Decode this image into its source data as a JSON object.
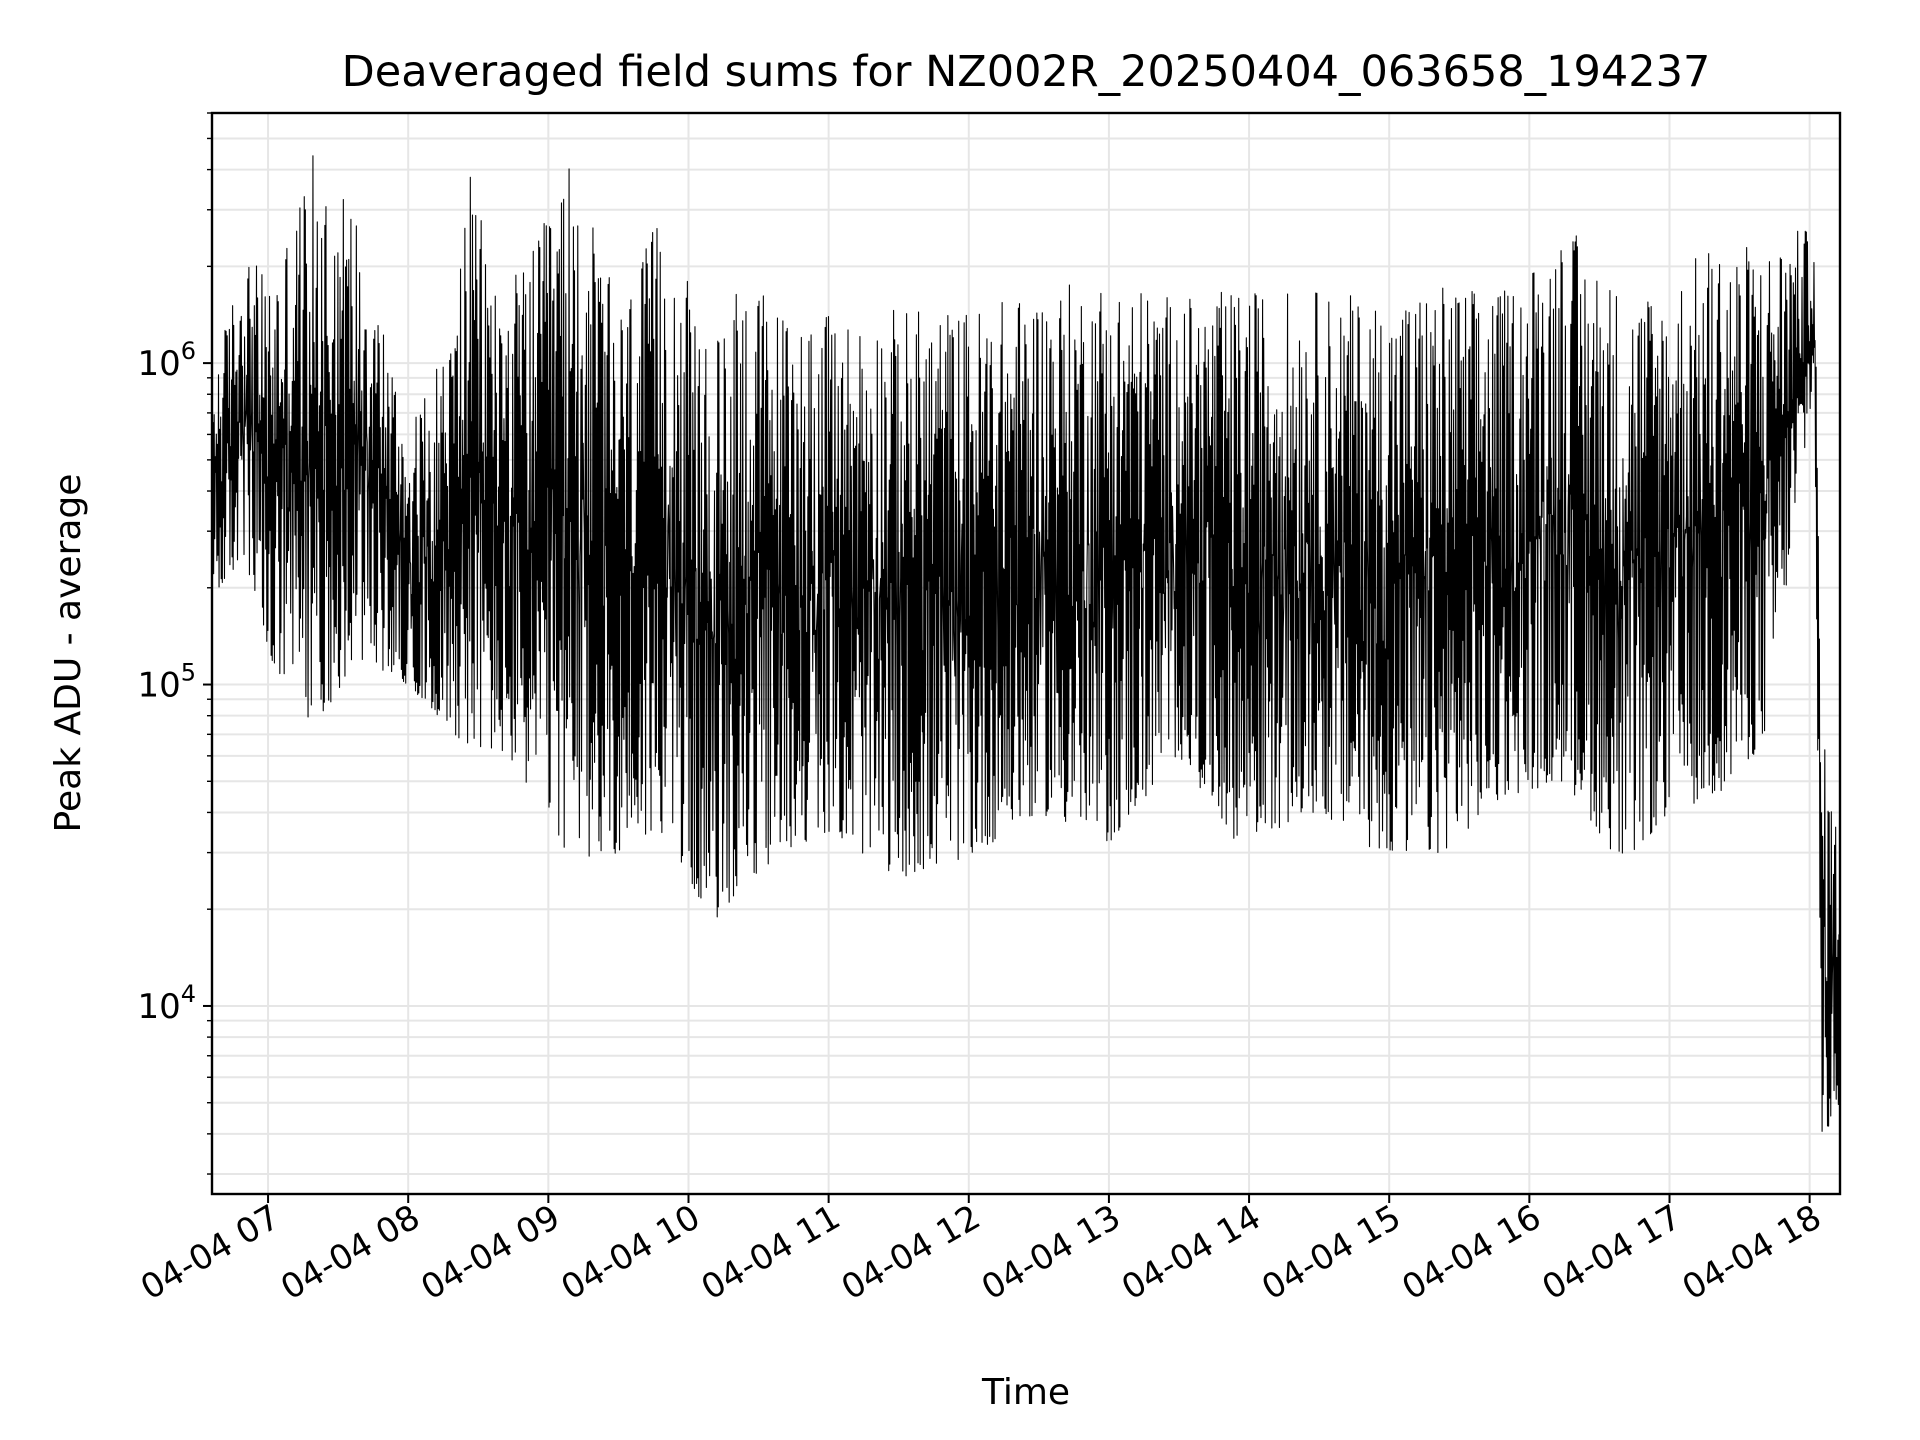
{
  "chart_data": {
    "type": "line",
    "title": "Deaveraged field sums for NZ002R_20250404_063658_194237",
    "xlabel": "Time",
    "ylabel": "Peak ADU - average",
    "yscale": "log",
    "grid": true,
    "xlim": [
      "2025-04-04 06:36",
      "2025-04-04 18:13"
    ],
    "ylim": [
      2600,
      6000000
    ],
    "x_ticks": [
      {
        "value": "2025-04-04 07:00",
        "label": "04-04 07"
      },
      {
        "value": "2025-04-04 08:00",
        "label": "04-04 08"
      },
      {
        "value": "2025-04-04 09:00",
        "label": "04-04 09"
      },
      {
        "value": "2025-04-04 10:00",
        "label": "04-04 10"
      },
      {
        "value": "2025-04-04 11:00",
        "label": "04-04 11"
      },
      {
        "value": "2025-04-04 12:00",
        "label": "04-04 12"
      },
      {
        "value": "2025-04-04 13:00",
        "label": "04-04 13"
      },
      {
        "value": "2025-04-04 14:00",
        "label": "04-04 14"
      },
      {
        "value": "2025-04-04 15:00",
        "label": "04-04 15"
      },
      {
        "value": "2025-04-04 16:00",
        "label": "04-04 16"
      },
      {
        "value": "2025-04-04 17:00",
        "label": "04-04 17"
      },
      {
        "value": "2025-04-04 18:00",
        "label": "04-04 18"
      }
    ],
    "y_ticks": [
      {
        "value": 10000,
        "base": "10",
        "exp": "4"
      },
      {
        "value": 100000,
        "base": "10",
        "exp": "5"
      },
      {
        "value": 1000000,
        "base": "10",
        "exp": "6"
      }
    ],
    "series": [
      {
        "color": "#000000",
        "note_values": "Representative envelope of the dense signal: pairs of [time, low, high] in data units",
        "envelope": [
          [
            "2025-04-04 06:36",
            180000,
            900000
          ],
          [
            "2025-04-04 06:50",
            250000,
            2300000
          ],
          [
            "2025-04-04 07:00",
            110000,
            1800000
          ],
          [
            "2025-04-04 07:20",
            75000,
            4600000
          ],
          [
            "2025-04-04 07:40",
            120000,
            2900000
          ],
          [
            "2025-04-04 08:00",
            100000,
            600000
          ],
          [
            "2025-04-04 08:20",
            70000,
            1400000
          ],
          [
            "2025-04-04 08:25",
            65000,
            4200000
          ],
          [
            "2025-04-04 08:40",
            60000,
            1700000
          ],
          [
            "2025-04-04 08:55",
            45000,
            2400000
          ],
          [
            "2025-04-04 09:10",
            28000,
            4500000
          ],
          [
            "2025-04-04 09:30",
            30000,
            1500000
          ],
          [
            "2025-04-04 09:50",
            35000,
            3100000
          ],
          [
            "2025-04-04 10:10",
            18000,
            1000000
          ],
          [
            "2025-04-04 10:20",
            22000,
            2100000
          ],
          [
            "2025-04-04 10:40",
            30000,
            1500000
          ],
          [
            "2025-04-04 11:00",
            35000,
            1400000
          ],
          [
            "2025-04-04 11:30",
            25000,
            1500000
          ],
          [
            "2025-04-04 12:00",
            29000,
            1500000
          ],
          [
            "2025-04-04 12:30",
            40000,
            1700000
          ],
          [
            "2025-04-04 13:00",
            32000,
            1900000
          ],
          [
            "2025-04-04 13:30",
            60000,
            1600000
          ],
          [
            "2025-04-04 13:55",
            32000,
            1700000
          ],
          [
            "2025-04-04 14:30",
            40000,
            1700000
          ],
          [
            "2025-04-04 14:55",
            30000,
            1600000
          ],
          [
            "2025-04-04 15:20",
            29000,
            1800000
          ],
          [
            "2025-04-04 15:50",
            45000,
            1700000
          ],
          [
            "2025-04-04 16:15",
            50000,
            2800000
          ],
          [
            "2025-04-04 16:40",
            27000,
            1700000
          ],
          [
            "2025-04-04 17:00",
            40000,
            1800000
          ],
          [
            "2025-04-04 17:20",
            45000,
            2500000
          ],
          [
            "2025-04-04 17:40",
            65000,
            2300000
          ],
          [
            "2025-04-04 17:55",
            350000,
            2600000
          ],
          [
            "2025-04-04 18:02",
            900000,
            2600000
          ],
          [
            "2025-04-04 18:05",
            3600,
            75000
          ],
          [
            "2025-04-04 18:13",
            5000,
            32000
          ]
        ]
      }
    ]
  }
}
